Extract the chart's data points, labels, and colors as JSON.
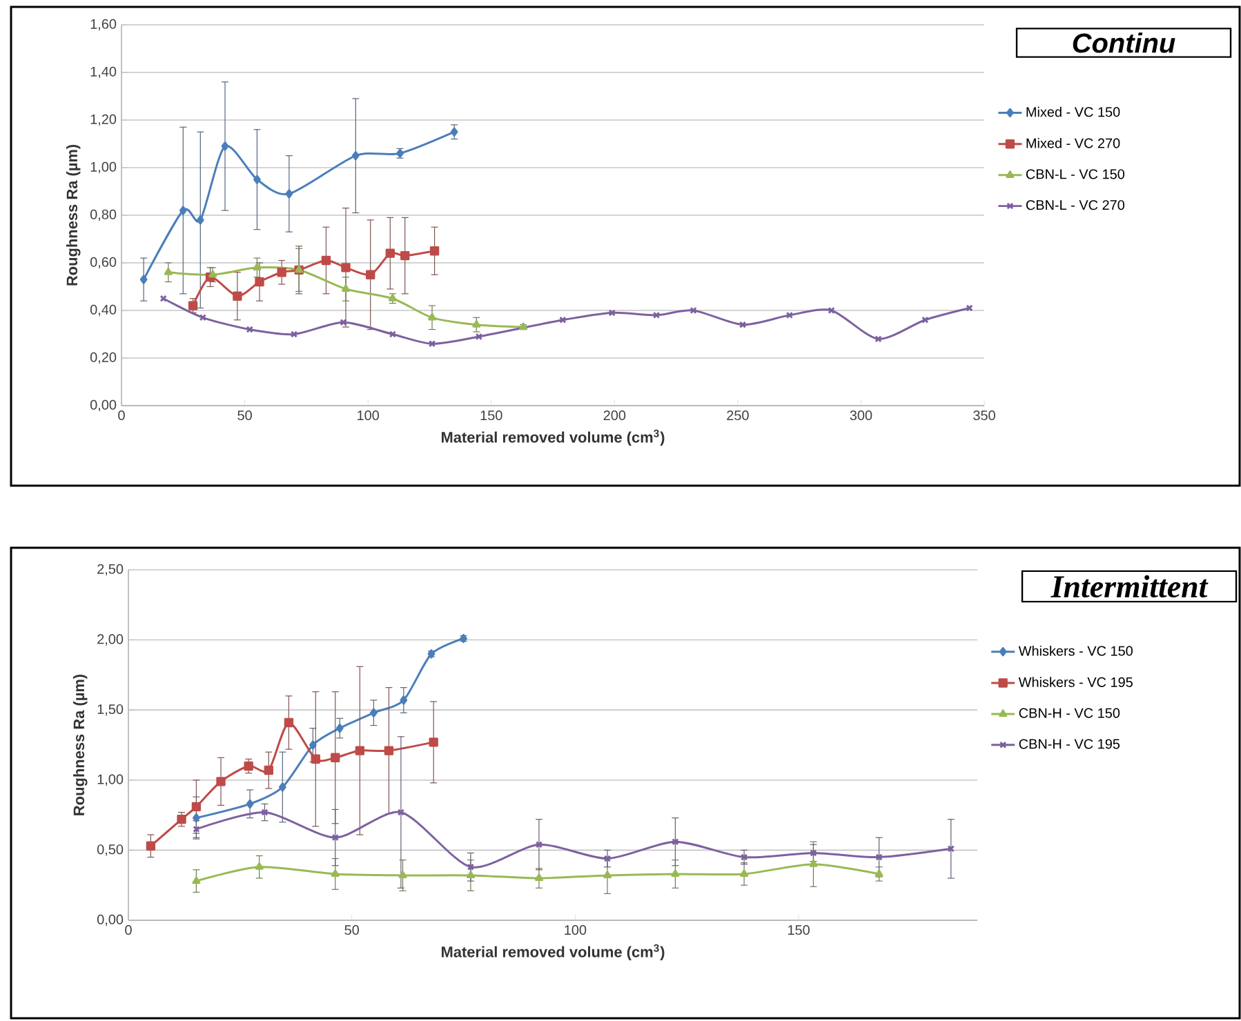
{
  "chart_data": [
    {
      "type": "line",
      "annotations": [
        "Continu"
      ],
      "xlabel": "Material removed volume (cm$^{3}$)",
      "ylabel": "Roughness Ra (µm)",
      "xlim": [
        0,
        350
      ],
      "ylim": [
        0,
        1.6
      ],
      "xticks": [
        0,
        50,
        100,
        150,
        200,
        250,
        300,
        350
      ],
      "yticks": [
        {
          "value": 0,
          "label": "0,00"
        },
        {
          "value": 0.2,
          "label": "0,20"
        },
        {
          "value": 0.4,
          "label": "0,40"
        },
        {
          "value": 0.6,
          "label": "0,60"
        },
        {
          "value": 0.8,
          "label": "0,80"
        },
        {
          "value": 1.0,
          "label": "1,00"
        },
        {
          "value": 1.2,
          "label": "1,20"
        },
        {
          "value": 1.4,
          "label": "1,40"
        },
        {
          "value": 1.6,
          "label": "1,60"
        }
      ],
      "grid": "y",
      "legend": "right",
      "series": [
        {
          "name": "Mixed - VC 150",
          "color": "#4a7ebb",
          "marker": "diamond",
          "x": [
            9,
            25,
            32,
            42,
            55,
            68,
            95,
            113,
            135
          ],
          "values": [
            0.53,
            0.82,
            0.78,
            1.09,
            0.95,
            0.89,
            1.05,
            1.06,
            1.15
          ],
          "errors": [
            0.09,
            0.35,
            0.37,
            0.27,
            0.21,
            0.16,
            0.24,
            0.02,
            0.03
          ]
        },
        {
          "name": "Mixed - VC 270",
          "color": "#be4b48",
          "marker": "square",
          "x": [
            29,
            36,
            47,
            56,
            65,
            72,
            83,
            91,
            101,
            109,
            115,
            127
          ],
          "values": [
            0.42,
            0.54,
            0.46,
            0.52,
            0.56,
            0.57,
            0.61,
            0.58,
            0.55,
            0.64,
            0.63,
            0.65
          ],
          "errors": [
            0.03,
            0.04,
            0.1,
            0.08,
            0.05,
            0.1,
            0.14,
            0.25,
            0.23,
            0.15,
            0.16,
            0.1
          ]
        },
        {
          "name": "CBN-L - VC 150",
          "color": "#98b954",
          "marker": "triangle",
          "x": [
            19,
            37,
            55,
            72,
            91,
            110,
            126,
            144,
            163
          ],
          "values": [
            0.56,
            0.55,
            0.58,
            0.57,
            0.49,
            0.45,
            0.37,
            0.34,
            0.33
          ],
          "errors": [
            0.04,
            0.03,
            0.04,
            0.09,
            0.05,
            0.02,
            0.05,
            0.03,
            0.01
          ]
        },
        {
          "name": "CBN-L - VC 270",
          "color": "#7d60a0",
          "marker": "cross",
          "x": [
            17,
            33,
            52,
            70,
            90,
            110,
            126,
            145,
            179,
            199,
            217,
            232,
            252,
            271,
            288,
            307,
            326,
            344
          ],
          "values": [
            0.45,
            0.37,
            0.32,
            0.3,
            0.35,
            0.3,
            0.26,
            0.29,
            0.36,
            0.39,
            0.38,
            0.4,
            0.34,
            0.38,
            0.4,
            0.28,
            0.36,
            0.41
          ]
        }
      ]
    },
    {
      "type": "line",
      "annotations": [
        "Intermittent"
      ],
      "xlabel": "Material removed volume (cm$^{3}$)",
      "ylabel": "Roughness Ra (µm)",
      "xlim": [
        0,
        190
      ],
      "ylim": [
        0,
        2.5
      ],
      "xticks": [
        0,
        50,
        100,
        150
      ],
      "yticks": [
        {
          "value": 0,
          "label": "0,00"
        },
        {
          "value": 0.5,
          "label": "0,50"
        },
        {
          "value": 1.0,
          "label": "1,00"
        },
        {
          "value": 1.5,
          "label": "1,50"
        },
        {
          "value": 2.0,
          "label": "2,00"
        },
        {
          "value": 2.5,
          "label": "2,50"
        }
      ],
      "grid": "y",
      "legend": "right",
      "series": [
        {
          "name": "Whiskers - VC 150",
          "color": "#4a7ebb",
          "marker": "diamond",
          "x": [
            15.2,
            27.2,
            34.5,
            41.3,
            47.3,
            54.9,
            61.6,
            67.8,
            75
          ],
          "values": [
            0.73,
            0.83,
            0.95,
            1.25,
            1.37,
            1.48,
            1.57,
            1.9,
            2.01
          ],
          "errors": [
            0.15,
            0.1,
            0.25,
            0.12,
            0.07,
            0.09,
            0.09,
            0.02,
            0.02
          ]
        },
        {
          "name": "Whiskers - VC 195",
          "color": "#be4b48",
          "marker": "square",
          "x": [
            5,
            11.9,
            15.2,
            20.7,
            26.9,
            31.4,
            35.9,
            41.9,
            46.3,
            51.8,
            58.3,
            68.3
          ],
          "values": [
            0.53,
            0.72,
            0.81,
            0.99,
            1.1,
            1.07,
            1.41,
            1.15,
            1.16,
            1.21,
            1.21,
            1.27
          ],
          "errors": [
            0.08,
            0.05,
            0.19,
            0.17,
            0.05,
            0.13,
            0.19,
            0.48,
            0.47,
            0.6,
            0.45,
            0.29
          ]
        },
        {
          "name": "CBN-H - VC 150",
          "color": "#98b954",
          "marker": "triangle",
          "x": [
            15.2,
            29.3,
            46.3,
            61.4,
            76.6,
            91.9,
            107.2,
            122.4,
            137.8,
            153.3,
            168
          ],
          "values": [
            0.28,
            0.38,
            0.33,
            0.32,
            0.32,
            0.3,
            0.32,
            0.33,
            0.33,
            0.4,
            0.33
          ],
          "errors": [
            0.08,
            0.08,
            0.11,
            0.11,
            0.11,
            0.07,
            0.13,
            0.1,
            0.08,
            0.16,
            0.05
          ]
        },
        {
          "name": "CBN-H - VC 195",
          "color": "#7d60a0",
          "marker": "cross",
          "x": [
            15.2,
            30.5,
            46.3,
            61,
            76.6,
            91.9,
            107.2,
            122.4,
            137.8,
            153.3,
            168,
            184.1
          ],
          "values": [
            0.65,
            0.77,
            0.59,
            0.77,
            0.38,
            0.54,
            0.44,
            0.56,
            0.45,
            0.48,
            0.45,
            0.51
          ],
          "errors": [
            0.06,
            0.06,
            0.2,
            0.54,
            0.1,
            0.18,
            0.06,
            0.17,
            0.05,
            0.06,
            0.14,
            0.21
          ]
        }
      ]
    }
  ]
}
